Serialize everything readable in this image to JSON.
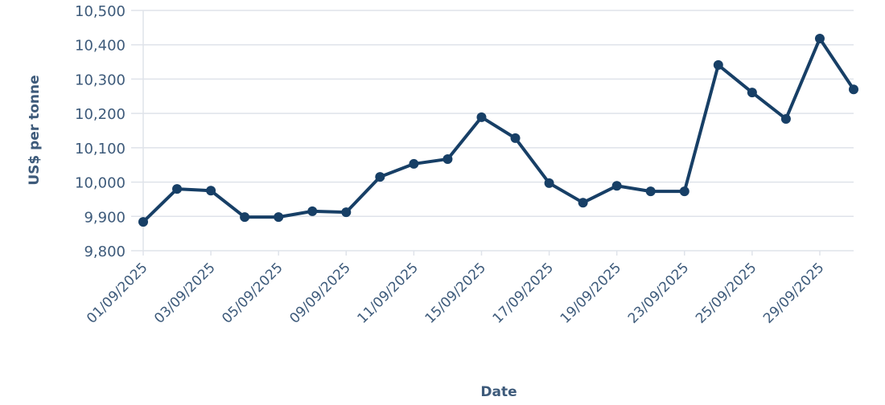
{
  "chart_data": {
    "type": "line",
    "title": "",
    "xlabel": "Date",
    "ylabel": "US$ per tonne",
    "ylim": [
      9800,
      10500
    ],
    "yticks": [
      "9,800",
      "9,900",
      "10,000",
      "10,100",
      "10,200",
      "10,300",
      "10,400",
      "10,500"
    ],
    "ytick_values": [
      9800,
      9900,
      10000,
      10100,
      10200,
      10300,
      10400,
      10500
    ],
    "grid": true,
    "legend": "none",
    "x": [
      "01/09/2025",
      "02/09/2025",
      "03/09/2025",
      "04/09/2025",
      "05/09/2025",
      "08/09/2025",
      "09/09/2025",
      "10/09/2025",
      "11/09/2025",
      "12/09/2025",
      "15/09/2025",
      "16/09/2025",
      "17/09/2025",
      "18/09/2025",
      "19/09/2025",
      "22/09/2025",
      "23/09/2025",
      "24/09/2025",
      "25/09/2025",
      "26/09/2025",
      "29/09/2025",
      "30/09/2025"
    ],
    "xtick_labels": [
      "01/09/2025",
      "03/09/2025",
      "05/09/2025",
      "09/09/2025",
      "11/09/2025",
      "15/09/2025",
      "17/09/2025",
      "19/09/2025",
      "23/09/2025",
      "25/09/2025",
      "29/09/2025"
    ],
    "series": [
      {
        "name": "US$ per tonne",
        "color": "#173f66",
        "values": [
          9884,
          9980,
          9975,
          9898,
          9898,
          9915,
          9912,
          10015,
          10053,
          10067,
          10189,
          10128,
          9997,
          9940,
          9989,
          9973,
          9973,
          10341,
          10261,
          10184,
          10418,
          10270
        ]
      }
    ]
  },
  "colors": {
    "line": "#173f66",
    "text": "#3d5a7a",
    "grid": "#dfe3ea"
  }
}
